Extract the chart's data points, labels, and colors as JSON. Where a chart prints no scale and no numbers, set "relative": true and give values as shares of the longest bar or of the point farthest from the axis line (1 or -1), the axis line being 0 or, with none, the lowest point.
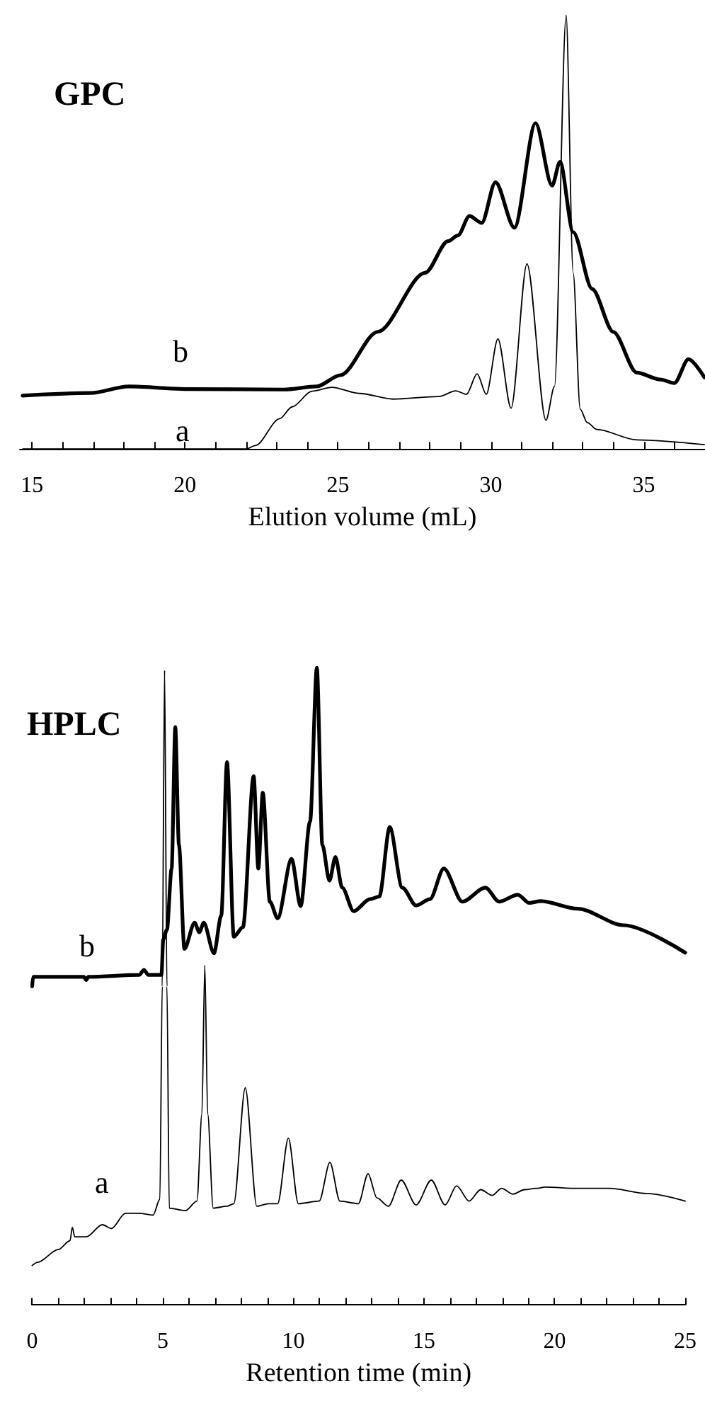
{
  "chart_data": [
    {
      "type": "line",
      "title": "GPC",
      "xlabel": "Elution volume (mL)",
      "relative": true,
      "grid": false,
      "marker": "none",
      "line_style": "solid",
      "xlim": [
        14.6,
        37
      ],
      "xticks": [
        15,
        {
          "value": 16,
          "label": null
        },
        {
          "value": 17,
          "label": null
        },
        {
          "value": 18,
          "label": null
        },
        {
          "value": 19,
          "label": null
        },
        20,
        {
          "value": 21,
          "label": null
        },
        {
          "value": 22,
          "label": null
        },
        {
          "value": 23,
          "label": null
        },
        {
          "value": 24,
          "label": null
        },
        25,
        {
          "value": 26,
          "label": null
        },
        {
          "value": 27,
          "label": null
        },
        {
          "value": 28,
          "label": null
        },
        {
          "value": 29,
          "label": null
        },
        30,
        {
          "value": 31,
          "label": null
        },
        {
          "value": 32,
          "label": null
        },
        {
          "value": 33,
          "label": null
        },
        {
          "value": 34,
          "label": null
        },
        35,
        {
          "value": 36,
          "label": null
        }
      ],
      "series": [
        {
          "name": "a",
          "color": "#000000",
          "x": [
            14.7,
            22.0,
            22.3,
            23.1,
            23.5,
            24.15,
            24.8,
            25.7,
            26.8,
            28.3,
            28.85,
            29.2,
            29.55,
            29.85,
            30.23,
            30.66,
            31.18,
            31.8,
            32.08,
            32.46,
            32.69,
            32.92,
            33.15,
            33.46,
            34.77,
            36.98
          ],
          "values": [
            0,
            0,
            0.008,
            0.07,
            0.097,
            0.133,
            0.142,
            0.128,
            0.115,
            0.121,
            0.134,
            0.126,
            0.173,
            0.126,
            0.254,
            0.094,
            0.427,
            0.066,
            0.144,
            1.0,
            0.406,
            0.092,
            0.061,
            0.045,
            0.021,
            0.01
          ]
        },
        {
          "name": "b",
          "color": "#000000",
          "x": [
            14.69,
            16.92,
            18.15,
            20.15,
            23.23,
            24.3,
            25.08,
            26.3,
            27.85,
            28.6,
            28.92,
            29.3,
            29.7,
            30.15,
            30.77,
            31.46,
            32.0,
            32.26,
            32.69,
            33.31,
            34.0,
            34.77,
            35.54,
            36.0,
            36.46,
            36.98
          ],
          "values": [
            0.123,
            0.129,
            0.144,
            0.138,
            0.137,
            0.144,
            0.17,
            0.27,
            0.406,
            0.479,
            0.492,
            0.537,
            0.521,
            0.615,
            0.51,
            0.751,
            0.607,
            0.662,
            0.5,
            0.369,
            0.27,
            0.176,
            0.16,
            0.152,
            0.207,
            0.165
          ]
        }
      ]
    },
    {
      "type": "line",
      "title": "HPLC",
      "xlabel": "Retention time (min)",
      "relative": true,
      "grid": false,
      "marker": "none",
      "line_style": "solid",
      "xlim": [
        0,
        25
      ],
      "xticks": [
        0,
        {
          "value": 1,
          "label": null
        },
        {
          "value": 2,
          "label": null
        },
        {
          "value": 3,
          "label": null
        },
        {
          "value": 4,
          "label": null
        },
        5,
        {
          "value": 6,
          "label": null
        },
        {
          "value": 7,
          "label": null
        },
        {
          "value": 8,
          "label": null
        },
        {
          "value": 9,
          "label": null
        },
        10,
        {
          "value": 11,
          "label": null
        },
        {
          "value": 12,
          "label": null
        },
        {
          "value": 13,
          "label": null
        },
        {
          "value": 14,
          "label": null
        },
        15,
        {
          "value": 16,
          "label": null
        },
        {
          "value": 17,
          "label": null
        },
        {
          "value": 18,
          "label": null
        },
        {
          "value": 19,
          "label": null
        },
        20,
        {
          "value": 21,
          "label": null
        },
        {
          "value": 22,
          "label": null
        },
        {
          "value": 23,
          "label": null
        },
        {
          "value": 24,
          "label": null
        },
        25
      ],
      "series": [
        {
          "name": "a",
          "color": "#000000",
          "x": [
            0,
            0.21,
            1.0,
            1.45,
            1.54,
            1.63,
            2.07,
            2.69,
            3.04,
            3.57,
            4.1,
            4.63,
            4.89,
            4.98,
            5.07,
            5.16,
            5.25,
            5.87,
            6.31,
            6.5,
            6.61,
            6.72,
            6.93,
            7.46,
            7.72,
            8.16,
            8.6,
            9.05,
            9.4,
            9.81,
            10.19,
            10.99,
            11.4,
            11.78,
            12.49,
            12.86,
            13.2,
            13.64,
            14.13,
            14.7,
            15.28,
            15.81,
            16.25,
            16.73,
            17.17,
            17.61,
            17.97,
            18.41,
            18.85,
            19.29,
            19.65,
            20.88,
            22.12,
            23.53,
            25
          ],
          "values": [
            0.062,
            0.067,
            0.087,
            0.101,
            0.122,
            0.107,
            0.107,
            0.126,
            0.12,
            0.144,
            0.144,
            0.141,
            0.166,
            0.5,
            0.996,
            0.5,
            0.152,
            0.148,
            0.163,
            0.3,
            0.533,
            0.3,
            0.152,
            0.155,
            0.159,
            0.341,
            0.155,
            0.159,
            0.159,
            0.262,
            0.159,
            0.163,
            0.224,
            0.163,
            0.159,
            0.206,
            0.168,
            0.155,
            0.196,
            0.157,
            0.196,
            0.157,
            0.187,
            0.163,
            0.181,
            0.172,
            0.183,
            0.174,
            0.181,
            0.183,
            0.185,
            0.183,
            0.183,
            0.175,
            0.163
          ]
        },
        {
          "name": "b",
          "color": "#000000",
          "x": [
            0,
            0.04,
            1.98,
            2.07,
            2.15,
            4.1,
            4.28,
            4.45,
            4.95,
            5.02,
            5.16,
            5.34,
            5.48,
            5.62,
            5.83,
            6.22,
            6.4,
            6.57,
            6.96,
            7.24,
            7.46,
            7.72,
            8.07,
            8.48,
            8.66,
            8.83,
            9.1,
            9.4,
            9.93,
            10.28,
            10.64,
            10.9,
            11.11,
            11.38,
            11.61,
            11.87,
            12.31,
            12.93,
            13.29,
            13.69,
            14.17,
            14.7,
            15.23,
            15.76,
            16.47,
            17.35,
            17.88,
            18.59,
            19.03,
            19.47,
            20.88,
            22.65,
            25
          ],
          "values": [
            0.5,
            0.515,
            0.515,
            0.51,
            0.515,
            0.518,
            0.526,
            0.518,
            0.518,
            0.574,
            0.589,
            0.685,
            0.907,
            0.722,
            0.559,
            0.6,
            0.585,
            0.6,
            0.552,
            0.611,
            0.852,
            0.578,
            0.593,
            0.83,
            0.685,
            0.804,
            0.633,
            0.607,
            0.7,
            0.626,
            0.759,
            1.0,
            0.722,
            0.666,
            0.703,
            0.655,
            0.618,
            0.637,
            0.641,
            0.75,
            0.655,
            0.627,
            0.637,
            0.685,
            0.633,
            0.655,
            0.633,
            0.644,
            0.631,
            0.634,
            0.622,
            0.596,
            0.553
          ]
        }
      ]
    }
  ]
}
